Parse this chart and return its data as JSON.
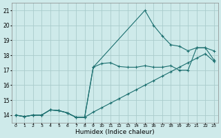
{
  "xlabel": "Humidex (Indice chaleur)",
  "bg_color": "#ceeaea",
  "grid_color": "#aacccc",
  "line_color": "#1a6e6e",
  "xlim": [
    -0.5,
    23.5
  ],
  "ylim": [
    13.5,
    21.5
  ],
  "xticks": [
    0,
    1,
    2,
    3,
    4,
    5,
    6,
    7,
    8,
    9,
    10,
    11,
    12,
    13,
    14,
    15,
    16,
    17,
    18,
    19,
    20,
    21,
    22,
    23
  ],
  "yticks": [
    14,
    15,
    16,
    17,
    18,
    19,
    20,
    21
  ],
  "line1_x": [
    0,
    1,
    2,
    3,
    4,
    5,
    6,
    7,
    8,
    9,
    10,
    11,
    12,
    13,
    14,
    15,
    16,
    17,
    18,
    19,
    20,
    21,
    22,
    23
  ],
  "line1_y": [
    14.0,
    13.9,
    14.0,
    14.0,
    14.35,
    14.3,
    14.15,
    13.85,
    13.85,
    14.2,
    14.5,
    14.8,
    15.1,
    15.4,
    15.7,
    16.0,
    16.3,
    16.6,
    16.9,
    17.2,
    17.5,
    17.8,
    18.1,
    17.6
  ],
  "line2_x": [
    0,
    1,
    2,
    3,
    4,
    5,
    6,
    7,
    8,
    9,
    10,
    11,
    12,
    13,
    14,
    15,
    16,
    17,
    18,
    19,
    20,
    21,
    22,
    23
  ],
  "line2_y": [
    14.0,
    13.9,
    14.0,
    14.0,
    14.35,
    14.3,
    14.15,
    13.85,
    13.85,
    17.2,
    17.45,
    17.5,
    17.25,
    17.2,
    17.2,
    17.3,
    17.2,
    17.2,
    17.3,
    17.0,
    17.0,
    18.5,
    18.5,
    18.3
  ],
  "line3_x": [
    0,
    1,
    2,
    3,
    4,
    5,
    6,
    7,
    8,
    9,
    15,
    16,
    17,
    18,
    19,
    20,
    21,
    22,
    23
  ],
  "line3_y": [
    14.0,
    13.9,
    14.0,
    14.0,
    14.35,
    14.3,
    14.15,
    13.85,
    13.85,
    17.2,
    21.0,
    20.0,
    19.3,
    18.7,
    18.6,
    18.3,
    18.5,
    18.5,
    17.7
  ]
}
